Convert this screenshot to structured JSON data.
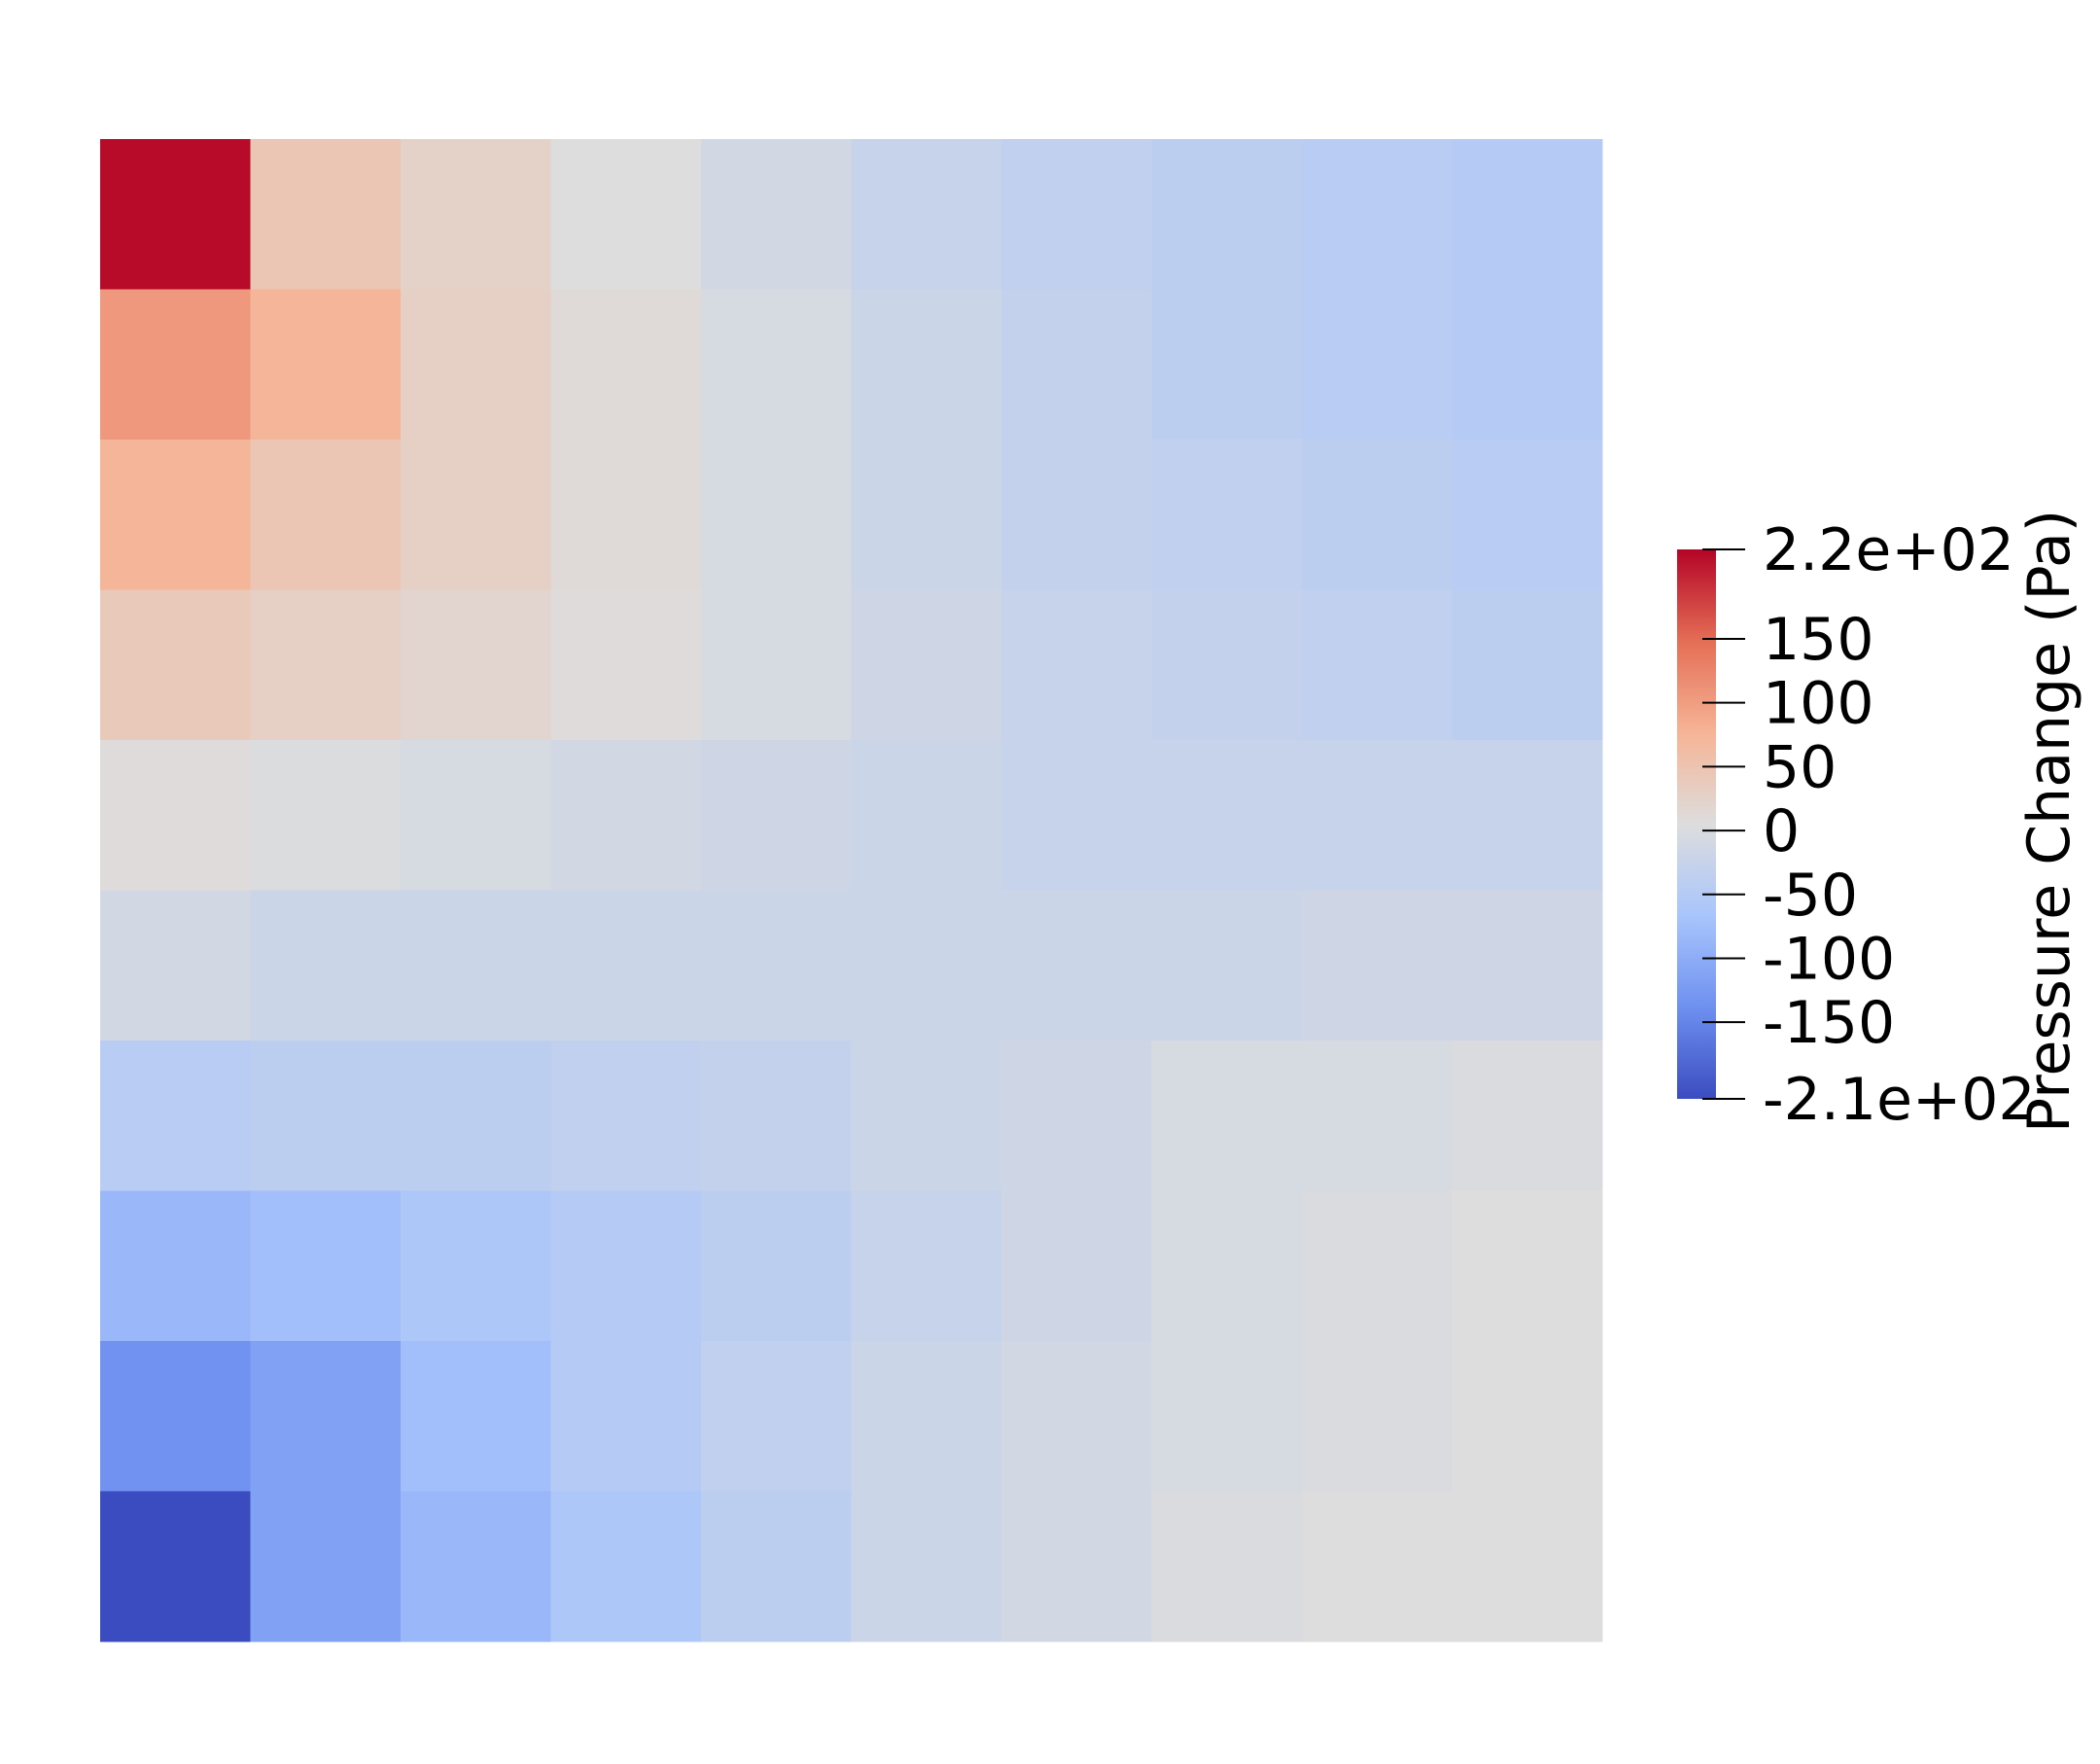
{
  "chart_data": {
    "type": "heatmap",
    "title": "",
    "xlabel": "",
    "ylabel": "",
    "grid": false,
    "rows": 10,
    "cols": 10,
    "values": [
      [
        215,
        45,
        25,
        5,
        -10,
        -25,
        -35,
        -40,
        -45,
        -50
      ],
      [
        105,
        75,
        30,
        10,
        -5,
        -20,
        -30,
        -40,
        -45,
        -50
      ],
      [
        75,
        45,
        30,
        10,
        -5,
        -20,
        -30,
        -35,
        -40,
        -45
      ],
      [
        40,
        30,
        20,
        8,
        -5,
        -15,
        -25,
        -30,
        -35,
        -40
      ],
      [
        8,
        2,
        -5,
        -10,
        -15,
        -20,
        -25,
        -25,
        -25,
        -25
      ],
      [
        -10,
        -20,
        -20,
        -20,
        -20,
        -20,
        -20,
        -20,
        -15,
        -15
      ],
      [
        -45,
        -40,
        -40,
        -35,
        -30,
        -20,
        -15,
        -5,
        -5,
        0
      ],
      [
        -85,
        -75,
        -60,
        -50,
        -40,
        -25,
        -15,
        -5,
        0,
        5
      ],
      [
        -135,
        -115,
        -75,
        -50,
        -35,
        -20,
        -10,
        -5,
        0,
        5
      ],
      [
        -210,
        -115,
        -85,
        -60,
        -40,
        -20,
        -10,
        0,
        5,
        5
      ]
    ],
    "colorbar": {
      "title": "Pressure Change (Pa)",
      "min": -210,
      "max": 220,
      "tick_values": [
        220,
        150,
        100,
        50,
        0,
        -50,
        -100,
        -150,
        -210
      ],
      "tick_labels": [
        "2.2e+02",
        "150",
        "100",
        "50",
        "0",
        "-50",
        "-100",
        "-150",
        "-2.1e+02"
      ],
      "colormap": "coolwarm",
      "stops": [
        "#3b4cc0",
        "#6e90f0",
        "#a9c5fc",
        "#dddddd",
        "#f6b496",
        "#e46e56",
        "#b40426"
      ],
      "placement": "right"
    }
  }
}
